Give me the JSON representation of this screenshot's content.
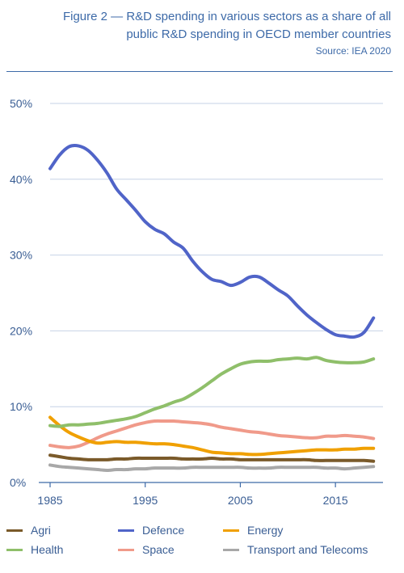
{
  "header": {
    "title_line1": "Figure 2 — R&D spending in various sectors as a share of all",
    "title_line2": "public R&D spending in OECD member countries",
    "source": "Source: IEA 2020"
  },
  "chart_data": {
    "type": "line",
    "title": "Figure 2 — R&D spending in various sectors as a share of all public R&D spending in OECD member countries",
    "xlabel": "",
    "ylabel": "",
    "xlim": [
      1985,
      2020
    ],
    "ylim": [
      0,
      50
    ],
    "x_ticks": [
      1985,
      1995,
      2005,
      2015
    ],
    "x_tick_labels": [
      "1985",
      "1995",
      "2005",
      "2015"
    ],
    "y_ticks": [
      0,
      10,
      20,
      30,
      40,
      50
    ],
    "y_tick_labels": [
      "0%",
      "10%",
      "20%",
      "30%",
      "40%",
      "50%"
    ],
    "grid": "horizontal",
    "legend_position": "bottom",
    "x": [
      1985,
      1986,
      1987,
      1988,
      1989,
      1990,
      1991,
      1992,
      1993,
      1994,
      1995,
      1996,
      1997,
      1998,
      1999,
      2000,
      2001,
      2002,
      2003,
      2004,
      2005,
      2006,
      2007,
      2008,
      2009,
      2010,
      2011,
      2012,
      2013,
      2014,
      2015,
      2016,
      2017,
      2018,
      2019
    ],
    "series": [
      {
        "name": "Agri",
        "color": "#7a5a2a",
        "values": [
          3.6,
          3.4,
          3.2,
          3.1,
          3.0,
          3.0,
          3.0,
          3.1,
          3.1,
          3.2,
          3.2,
          3.2,
          3.2,
          3.2,
          3.1,
          3.1,
          3.1,
          3.2,
          3.1,
          3.1,
          3.0,
          3.0,
          3.0,
          3.0,
          3.0,
          3.0,
          3.0,
          3.0,
          2.9,
          2.9,
          2.9,
          2.9,
          2.9,
          2.9,
          2.8
        ]
      },
      {
        "name": "Defence",
        "color": "#5064c8",
        "values": [
          41.4,
          43.2,
          44.3,
          44.4,
          43.8,
          42.5,
          40.8,
          38.7,
          37.3,
          35.9,
          34.4,
          33.4,
          32.8,
          31.7,
          30.9,
          29.2,
          27.8,
          26.8,
          26.5,
          26.0,
          26.4,
          27.1,
          27.1,
          26.3,
          25.4,
          24.6,
          23.3,
          22.1,
          21.1,
          20.2,
          19.5,
          19.3,
          19.2,
          19.8,
          21.7
        ]
      },
      {
        "name": "Energy",
        "color": "#f0a000",
        "values": [
          8.6,
          7.5,
          6.6,
          6.0,
          5.5,
          5.2,
          5.3,
          5.4,
          5.3,
          5.3,
          5.2,
          5.1,
          5.1,
          5.0,
          4.8,
          4.6,
          4.3,
          4.0,
          3.9,
          3.8,
          3.8,
          3.7,
          3.7,
          3.8,
          3.9,
          4.0,
          4.1,
          4.2,
          4.3,
          4.3,
          4.3,
          4.4,
          4.4,
          4.5,
          4.5
        ]
      },
      {
        "name": "Health",
        "color": "#8fbf6a",
        "values": [
          7.5,
          7.4,
          7.6,
          7.6,
          7.7,
          7.8,
          8.0,
          8.2,
          8.4,
          8.7,
          9.2,
          9.7,
          10.1,
          10.6,
          11.0,
          11.7,
          12.5,
          13.4,
          14.3,
          15.0,
          15.6,
          15.9,
          16.0,
          16.0,
          16.2,
          16.3,
          16.4,
          16.3,
          16.5,
          16.1,
          15.9,
          15.8,
          15.8,
          15.9,
          16.3
        ]
      },
      {
        "name": "Space",
        "color": "#f09a8a",
        "values": [
          4.9,
          4.7,
          4.6,
          4.8,
          5.3,
          5.9,
          6.4,
          6.8,
          7.2,
          7.6,
          7.9,
          8.1,
          8.1,
          8.1,
          8.0,
          7.9,
          7.8,
          7.6,
          7.3,
          7.1,
          6.9,
          6.7,
          6.6,
          6.4,
          6.2,
          6.1,
          6.0,
          5.9,
          5.9,
          6.1,
          6.1,
          6.2,
          6.1,
          6.0,
          5.8
        ]
      },
      {
        "name": "Transport and Telecoms",
        "color": "#a8a8a8",
        "values": [
          2.3,
          2.1,
          2.0,
          1.9,
          1.8,
          1.7,
          1.6,
          1.7,
          1.7,
          1.8,
          1.8,
          1.9,
          1.9,
          1.9,
          1.9,
          2.0,
          2.0,
          2.0,
          2.0,
          2.0,
          2.0,
          1.9,
          1.9,
          1.9,
          2.0,
          2.0,
          2.0,
          2.0,
          2.0,
          1.9,
          1.9,
          1.8,
          1.9,
          2.0,
          2.1
        ]
      }
    ]
  }
}
